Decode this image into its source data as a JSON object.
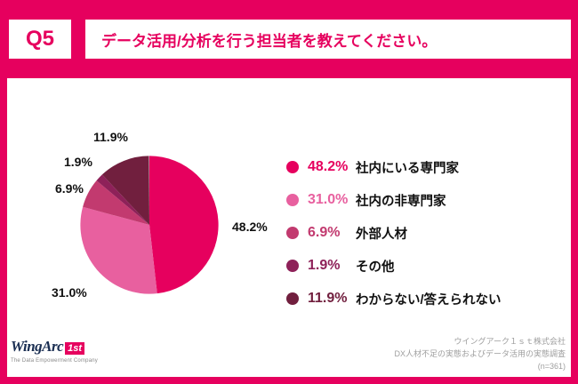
{
  "header": {
    "question_number": "Q5",
    "question_text": "データ活用/分析を行う担当者を教えてください。"
  },
  "chart_data": {
    "type": "pie",
    "title": "データ活用/分析を行う担当者",
    "labels": [
      "社内にいる専門家",
      "社内の非専門家",
      "外部人材",
      "その他",
      "わからない/答えられない"
    ],
    "values": [
      48.2,
      31.0,
      6.9,
      1.9,
      11.9
    ],
    "value_labels": [
      "48.2%",
      "31.0%",
      "6.9%",
      "1.9%",
      "11.9%"
    ],
    "colors": [
      "#E6005E",
      "#E8609F",
      "#C23A6F",
      "#8E2159",
      "#711F3E"
    ],
    "start_angle_deg": -90,
    "direction": "clockwise",
    "legend_position": "right"
  },
  "legend": {
    "items": [
      {
        "pct": "48.2%",
        "label": "社内にいる専門家",
        "color": "#E6005E"
      },
      {
        "pct": "31.0%",
        "label": "社内の非専門家",
        "color": "#E8609F"
      },
      {
        "pct": "6.9%",
        "label": "外部人材",
        "color": "#C23A6F"
      },
      {
        "pct": "1.9%",
        "label": "その他",
        "color": "#8E2159"
      },
      {
        "pct": "11.9%",
        "label": "わからない/答えられない",
        "color": "#711F3E"
      }
    ]
  },
  "footer": {
    "logo": {
      "brand": "WingArc",
      "suffix": "1st",
      "tagline": "The Data Empowerment Company"
    },
    "source_lines": [
      "ウイングアーク１ｓｔ株式会社",
      "DX人材不足の実態およびデータ活用の実態調査",
      "(n=361)"
    ]
  },
  "colors": {
    "brand_pink": "#E6005E",
    "logo_navy": "#1A2E52",
    "source_gray": "#9E9E9E"
  }
}
